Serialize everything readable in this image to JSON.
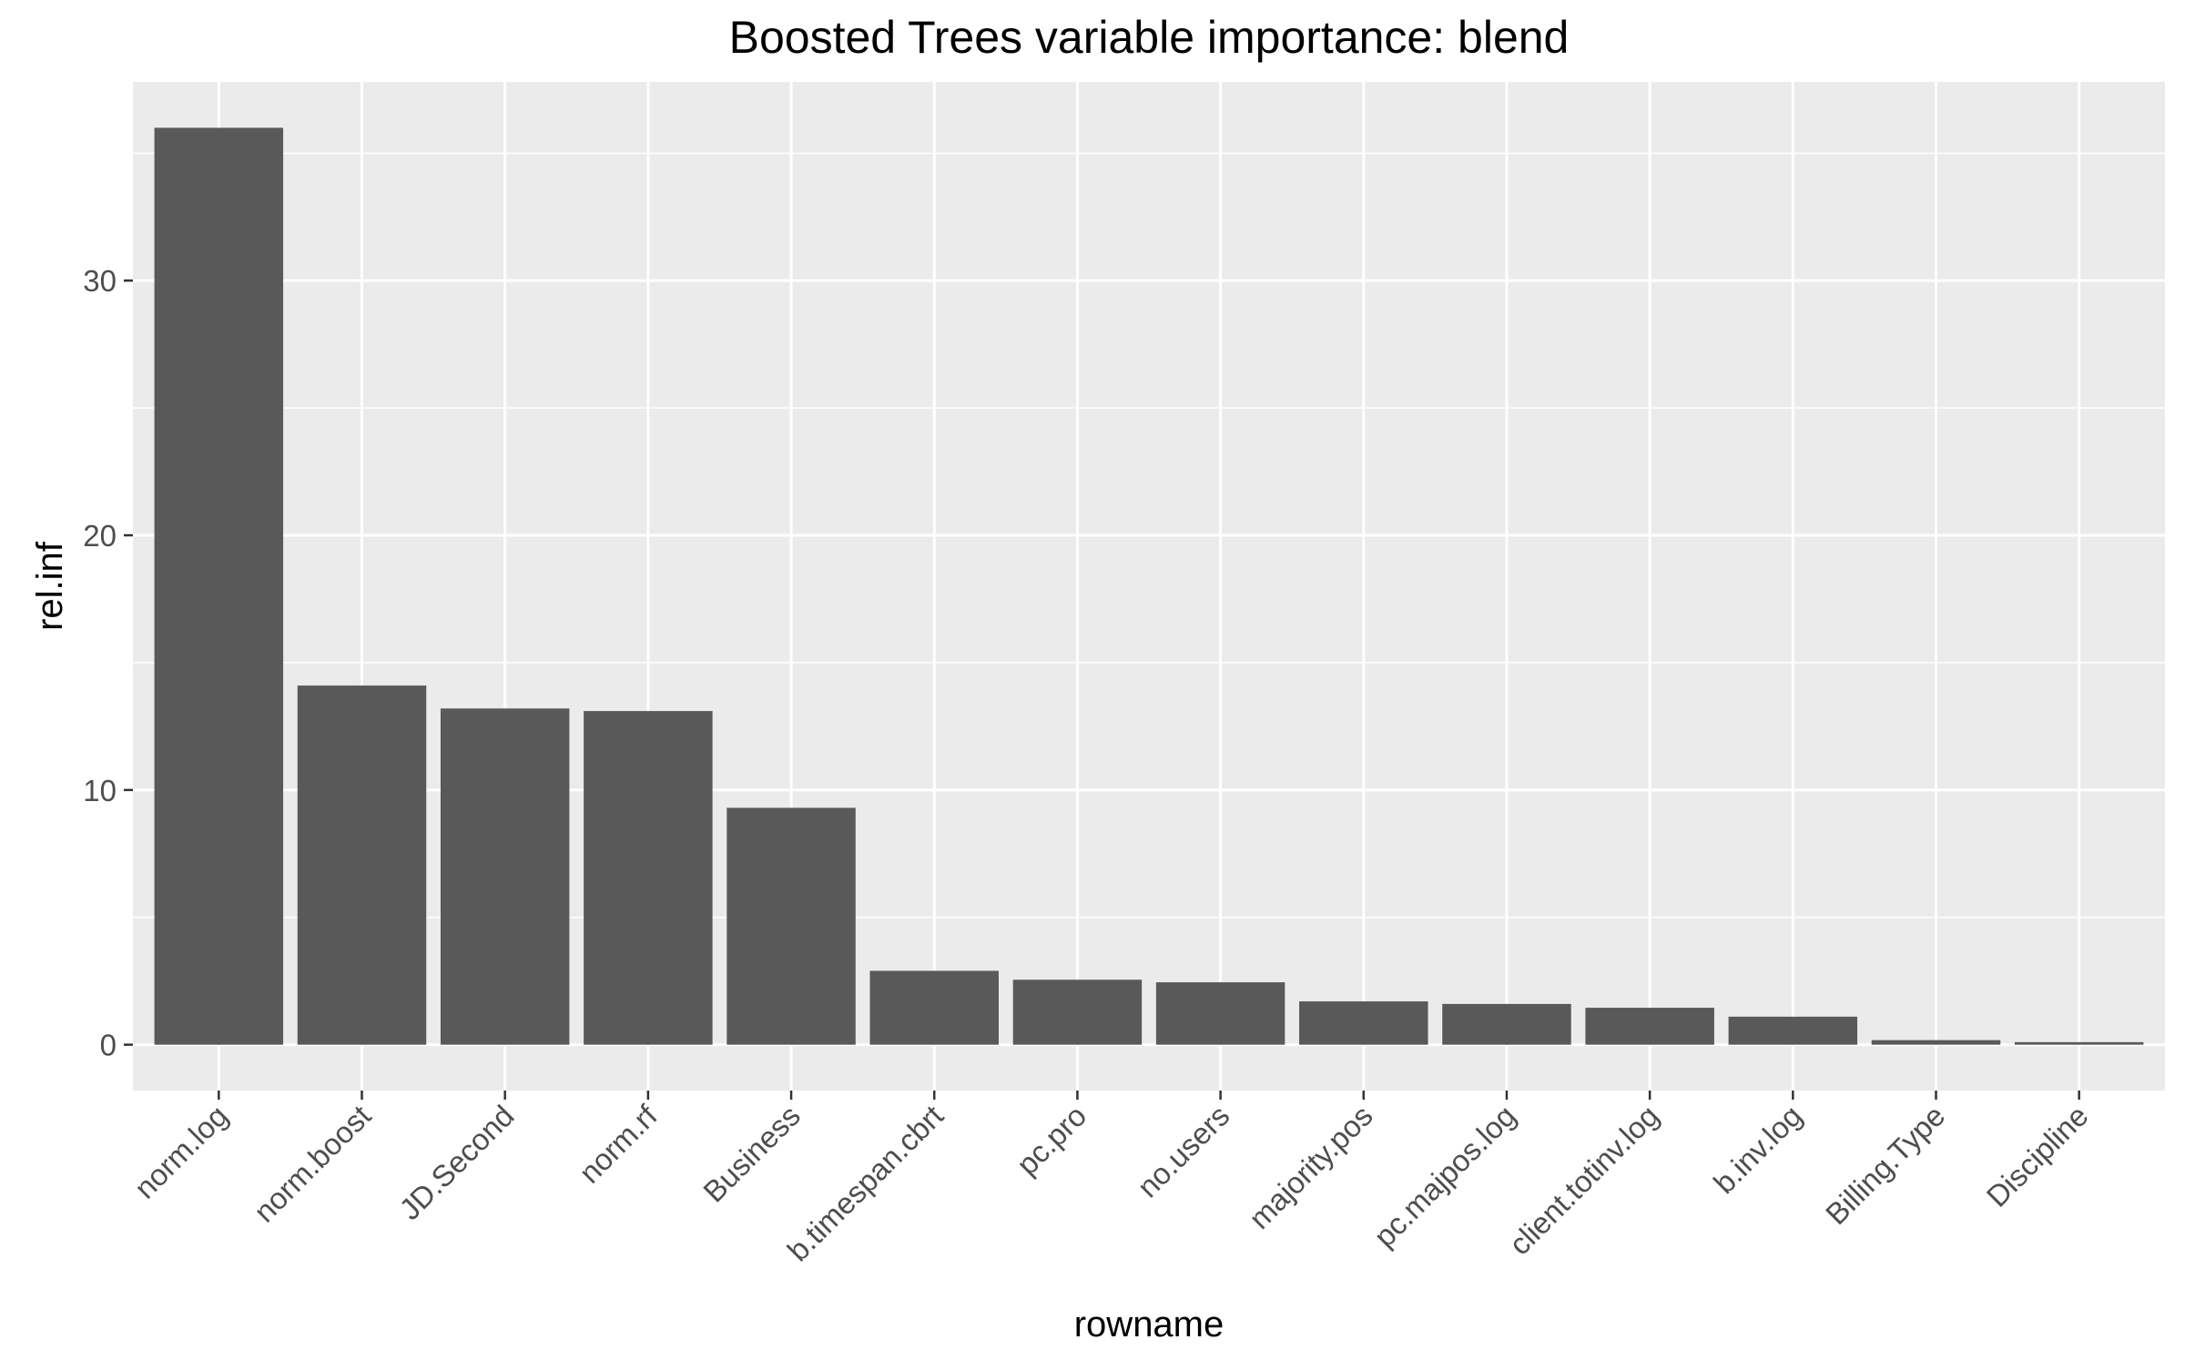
{
  "chart_data": {
    "type": "bar",
    "title": "Boosted Trees variable importance: blend",
    "xlabel": "rowname",
    "ylabel": "rel.inf",
    "categories": [
      "norm.log",
      "norm.boost",
      "JD.Second",
      "norm.rf",
      "Business",
      "b.timespan.cbrt",
      "pc.pro",
      "no.users",
      "majority.pos",
      "pc.majpos.log",
      "client.totinv.log",
      "b.inv.log",
      "Billing.Type",
      "Discipline"
    ],
    "values": [
      36.0,
      14.1,
      13.2,
      13.1,
      9.3,
      2.9,
      2.55,
      2.45,
      1.7,
      1.6,
      1.45,
      1.1,
      0.18,
      0.1
    ],
    "yticks": [
      0,
      10,
      20,
      30
    ],
    "ylim": [
      -1.8,
      37.8
    ],
    "grid": true,
    "legend": "none",
    "bar_color": "#595959",
    "panel_color": "#EBEBEB",
    "grid_color": "#FFFFFF"
  }
}
